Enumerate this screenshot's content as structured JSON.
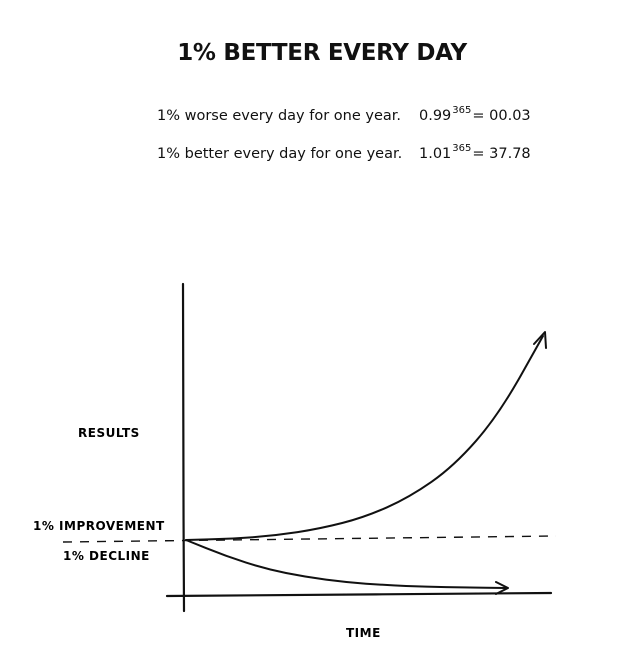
{
  "header": {
    "title": "1% BETTER EVERY DAY"
  },
  "formulas": [
    {
      "label": "1% worse every day for one year.",
      "base": "0.99",
      "exponent": "365",
      "result": "= 00.03"
    },
    {
      "label": "1% better every day for one year.",
      "base": "1.01",
      "exponent": "365",
      "result": "= 37.78"
    }
  ],
  "chart_data": {
    "type": "line",
    "hand_drawn": true,
    "ylabel": "RESULTS",
    "xlabel": "TIME",
    "baseline_style": "dashed",
    "series": [
      {
        "name": "1% IMPROVEMENT",
        "direction": "exponential-growth",
        "values_relative": [
          1.0,
          1.02,
          1.08,
          1.2,
          1.4,
          1.75,
          2.3,
          3.2,
          4.6
        ]
      },
      {
        "name": "1% DECLINE",
        "direction": "exponential-decay",
        "values_relative": [
          1.0,
          0.72,
          0.5,
          0.36,
          0.27,
          0.22,
          0.19,
          0.18,
          0.17
        ]
      }
    ]
  },
  "colors": {
    "ink": "#111111",
    "background": "#ffffff"
  }
}
